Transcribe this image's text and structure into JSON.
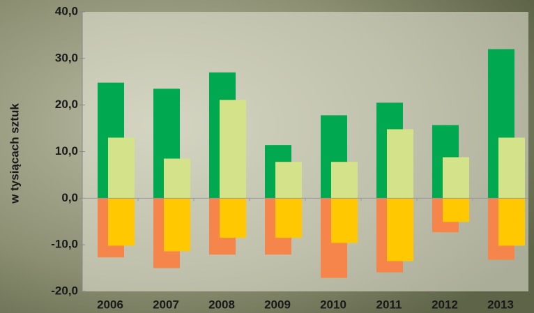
{
  "chart_data": {
    "type": "bar",
    "y_label": "w tysiącach sztuk",
    "categories": [
      "2006",
      "2007",
      "2008",
      "2009",
      "2010",
      "2011",
      "2012",
      "2013"
    ],
    "series": [
      {
        "color": "#00a84f",
        "values": [
          24.8,
          23.5,
          27.0,
          11.4,
          17.8,
          20.5,
          15.7,
          32.0
        ]
      },
      {
        "color": "#d4e38a",
        "values": [
          13.0,
          8.5,
          21.1,
          7.8,
          7.8,
          14.8,
          8.8,
          13.0
        ]
      },
      {
        "color": "#f5854a",
        "values": [
          -12.7,
          -15.0,
          -12.1,
          -12.1,
          -17.1,
          -15.9,
          -7.3,
          -13.2
        ]
      },
      {
        "color": "#ffc800",
        "values": [
          -10.2,
          -11.4,
          -8.5,
          -8.5,
          -9.6,
          -13.5,
          -5.1,
          -10.2
        ]
      }
    ],
    "ylim": [
      -20,
      40
    ],
    "yticks": [
      {
        "value": -20,
        "label": "-20,0"
      },
      {
        "value": -10,
        "label": "-10,0"
      },
      {
        "value": 0,
        "label": "0,0"
      },
      {
        "value": 10,
        "label": "10,0"
      },
      {
        "value": 20,
        "label": "20,0"
      },
      {
        "value": 30,
        "label": "30,0"
      },
      {
        "value": 40,
        "label": "40,0"
      }
    ],
    "grid": false
  }
}
